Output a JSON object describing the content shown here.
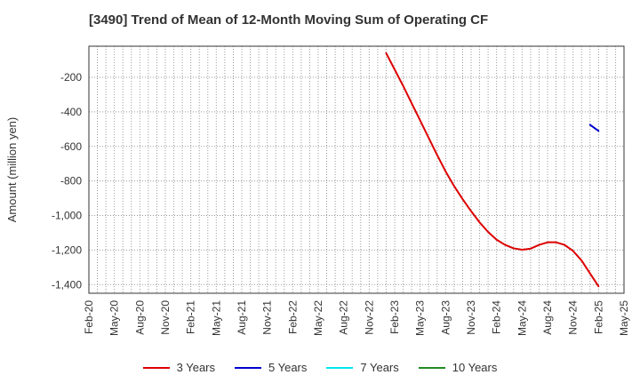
{
  "chart_data": {
    "type": "line",
    "title": "[3490]  Trend of Mean of 12-Month Moving Sum of Operating CF",
    "ylabel": "Amount (million yen)",
    "xlabel": "",
    "x_ticks": [
      "Feb-20",
      "May-20",
      "Aug-20",
      "Nov-20",
      "Feb-21",
      "May-21",
      "Aug-21",
      "Nov-21",
      "Feb-22",
      "May-22",
      "Aug-22",
      "Nov-22",
      "Feb-23",
      "May-23",
      "Aug-23",
      "Nov-23",
      "Feb-24",
      "May-24",
      "Aug-24",
      "Nov-24",
      "Feb-25",
      "May-25"
    ],
    "y_ticks": [
      -200,
      -400,
      -600,
      -800,
      -1000,
      -1200,
      -1400
    ],
    "y_tick_labels": [
      "-200",
      "-400",
      "-600",
      "-800",
      "-1,000",
      "-1,200",
      "-1,400"
    ],
    "ylim": [
      -1450,
      -20
    ],
    "xlim": [
      "Feb-20",
      "May-25"
    ],
    "grid": true,
    "legend_position": "bottom",
    "series": [
      {
        "name": "3 Years",
        "color": "#dd0000",
        "points": [
          [
            "Jan-23",
            -60
          ],
          [
            "Feb-23",
            -155
          ],
          [
            "Mar-23",
            -250
          ],
          [
            "Apr-23",
            -350
          ],
          [
            "May-23",
            -450
          ],
          [
            "Jun-23",
            -550
          ],
          [
            "Jul-23",
            -650
          ],
          [
            "Aug-23",
            -745
          ],
          [
            "Sep-23",
            -830
          ],
          [
            "Oct-23",
            -905
          ],
          [
            "Nov-23",
            -975
          ],
          [
            "Dec-23",
            -1040
          ],
          [
            "Jan-24",
            -1095
          ],
          [
            "Feb-24",
            -1140
          ],
          [
            "Mar-24",
            -1170
          ],
          [
            "Apr-24",
            -1190
          ],
          [
            "May-24",
            -1198
          ],
          [
            "Jun-24",
            -1192
          ],
          [
            "Jul-24",
            -1170
          ],
          [
            "Aug-24",
            -1155
          ],
          [
            "Sep-24",
            -1155
          ],
          [
            "Oct-24",
            -1170
          ],
          [
            "Nov-24",
            -1205
          ],
          [
            "Dec-24",
            -1260
          ],
          [
            "Jan-25",
            -1335
          ],
          [
            "Feb-25",
            -1410
          ]
        ]
      },
      {
        "name": "5 Years",
        "color": "#0000cc",
        "points": [
          [
            "Jan-25",
            -475
          ],
          [
            "Feb-25",
            -510
          ]
        ]
      },
      {
        "name": "7 Years",
        "color": "#00e5ee",
        "points": []
      },
      {
        "name": "10 Years",
        "color": "#228b22",
        "points": []
      }
    ]
  }
}
